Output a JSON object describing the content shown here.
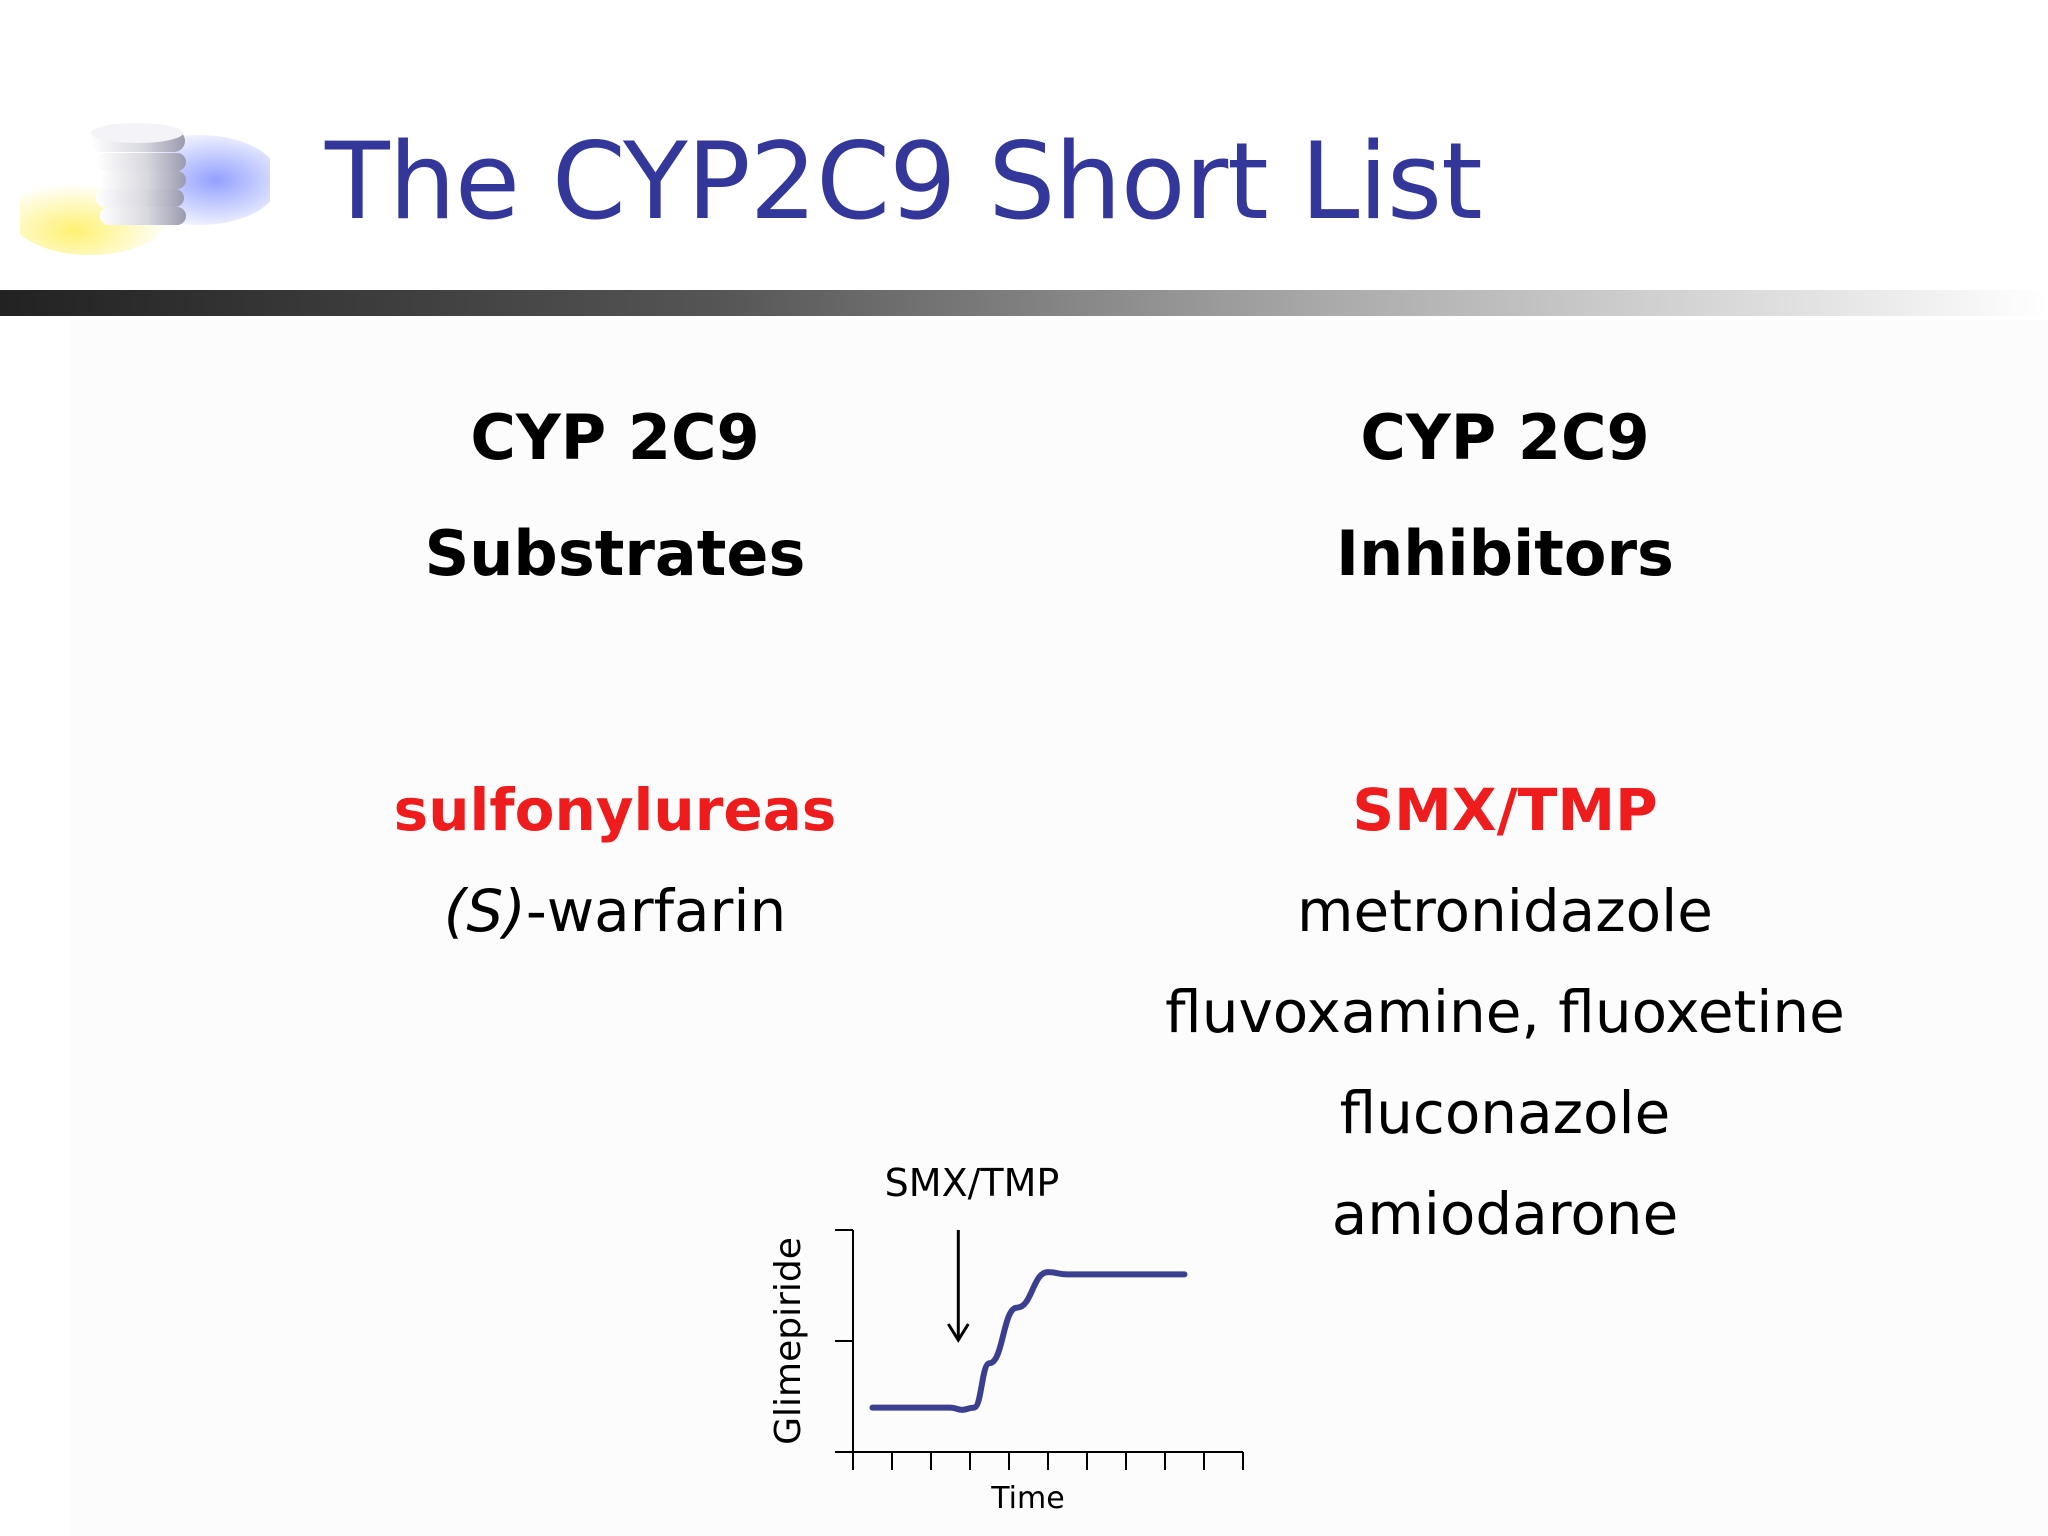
{
  "slide": {
    "title": "The CYP2C9 Short List"
  },
  "left_column": {
    "heading_line1": "CYP 2C9",
    "heading_line2": "Substrates",
    "items": [
      {
        "text": "sulfonylureas",
        "highlight": true
      },
      {
        "prefix_italic": "(S)",
        "text": "-warfarin",
        "highlight": false
      }
    ]
  },
  "right_column": {
    "heading_line1": "CYP 2C9",
    "heading_line2": "Inhibitors",
    "items": [
      {
        "text": "SMX/TMP",
        "highlight": true
      },
      {
        "text": "metronidazole",
        "highlight": false
      },
      {
        "text": "fluvoxamine, fluoxetine",
        "highlight": false
      },
      {
        "text": "fluconazole",
        "highlight": false
      },
      {
        "text": "amiodarone",
        "highlight": false
      }
    ]
  },
  "colors": {
    "title": "#34379a",
    "highlight": "#ee1c1c",
    "text": "#000000"
  },
  "chart_data": {
    "type": "line",
    "xlabel": "Time",
    "ylabel": "Glimepiride",
    "annotation": {
      "label": "SMX/TMP",
      "x": 2.7
    },
    "x_ticks": [
      0,
      1,
      2,
      3,
      4,
      5,
      6,
      7,
      8,
      9,
      10
    ],
    "y_ticks": [
      0,
      1,
      2
    ],
    "xlim": [
      0,
      10
    ],
    "ylim": [
      0,
      2
    ],
    "series": [
      {
        "values": [
          [
            0.5,
            0.4
          ],
          [
            1.5,
            0.4
          ],
          [
            2.5,
            0.4
          ],
          [
            2.8,
            0.38
          ],
          [
            3.1,
            0.4
          ],
          [
            3.5,
            0.8
          ],
          [
            4.2,
            1.3
          ],
          [
            5.0,
            1.62
          ],
          [
            5.5,
            1.6
          ],
          [
            6.0,
            1.6
          ],
          [
            7.0,
            1.6
          ],
          [
            8.0,
            1.6
          ],
          [
            8.5,
            1.6
          ]
        ]
      }
    ]
  }
}
